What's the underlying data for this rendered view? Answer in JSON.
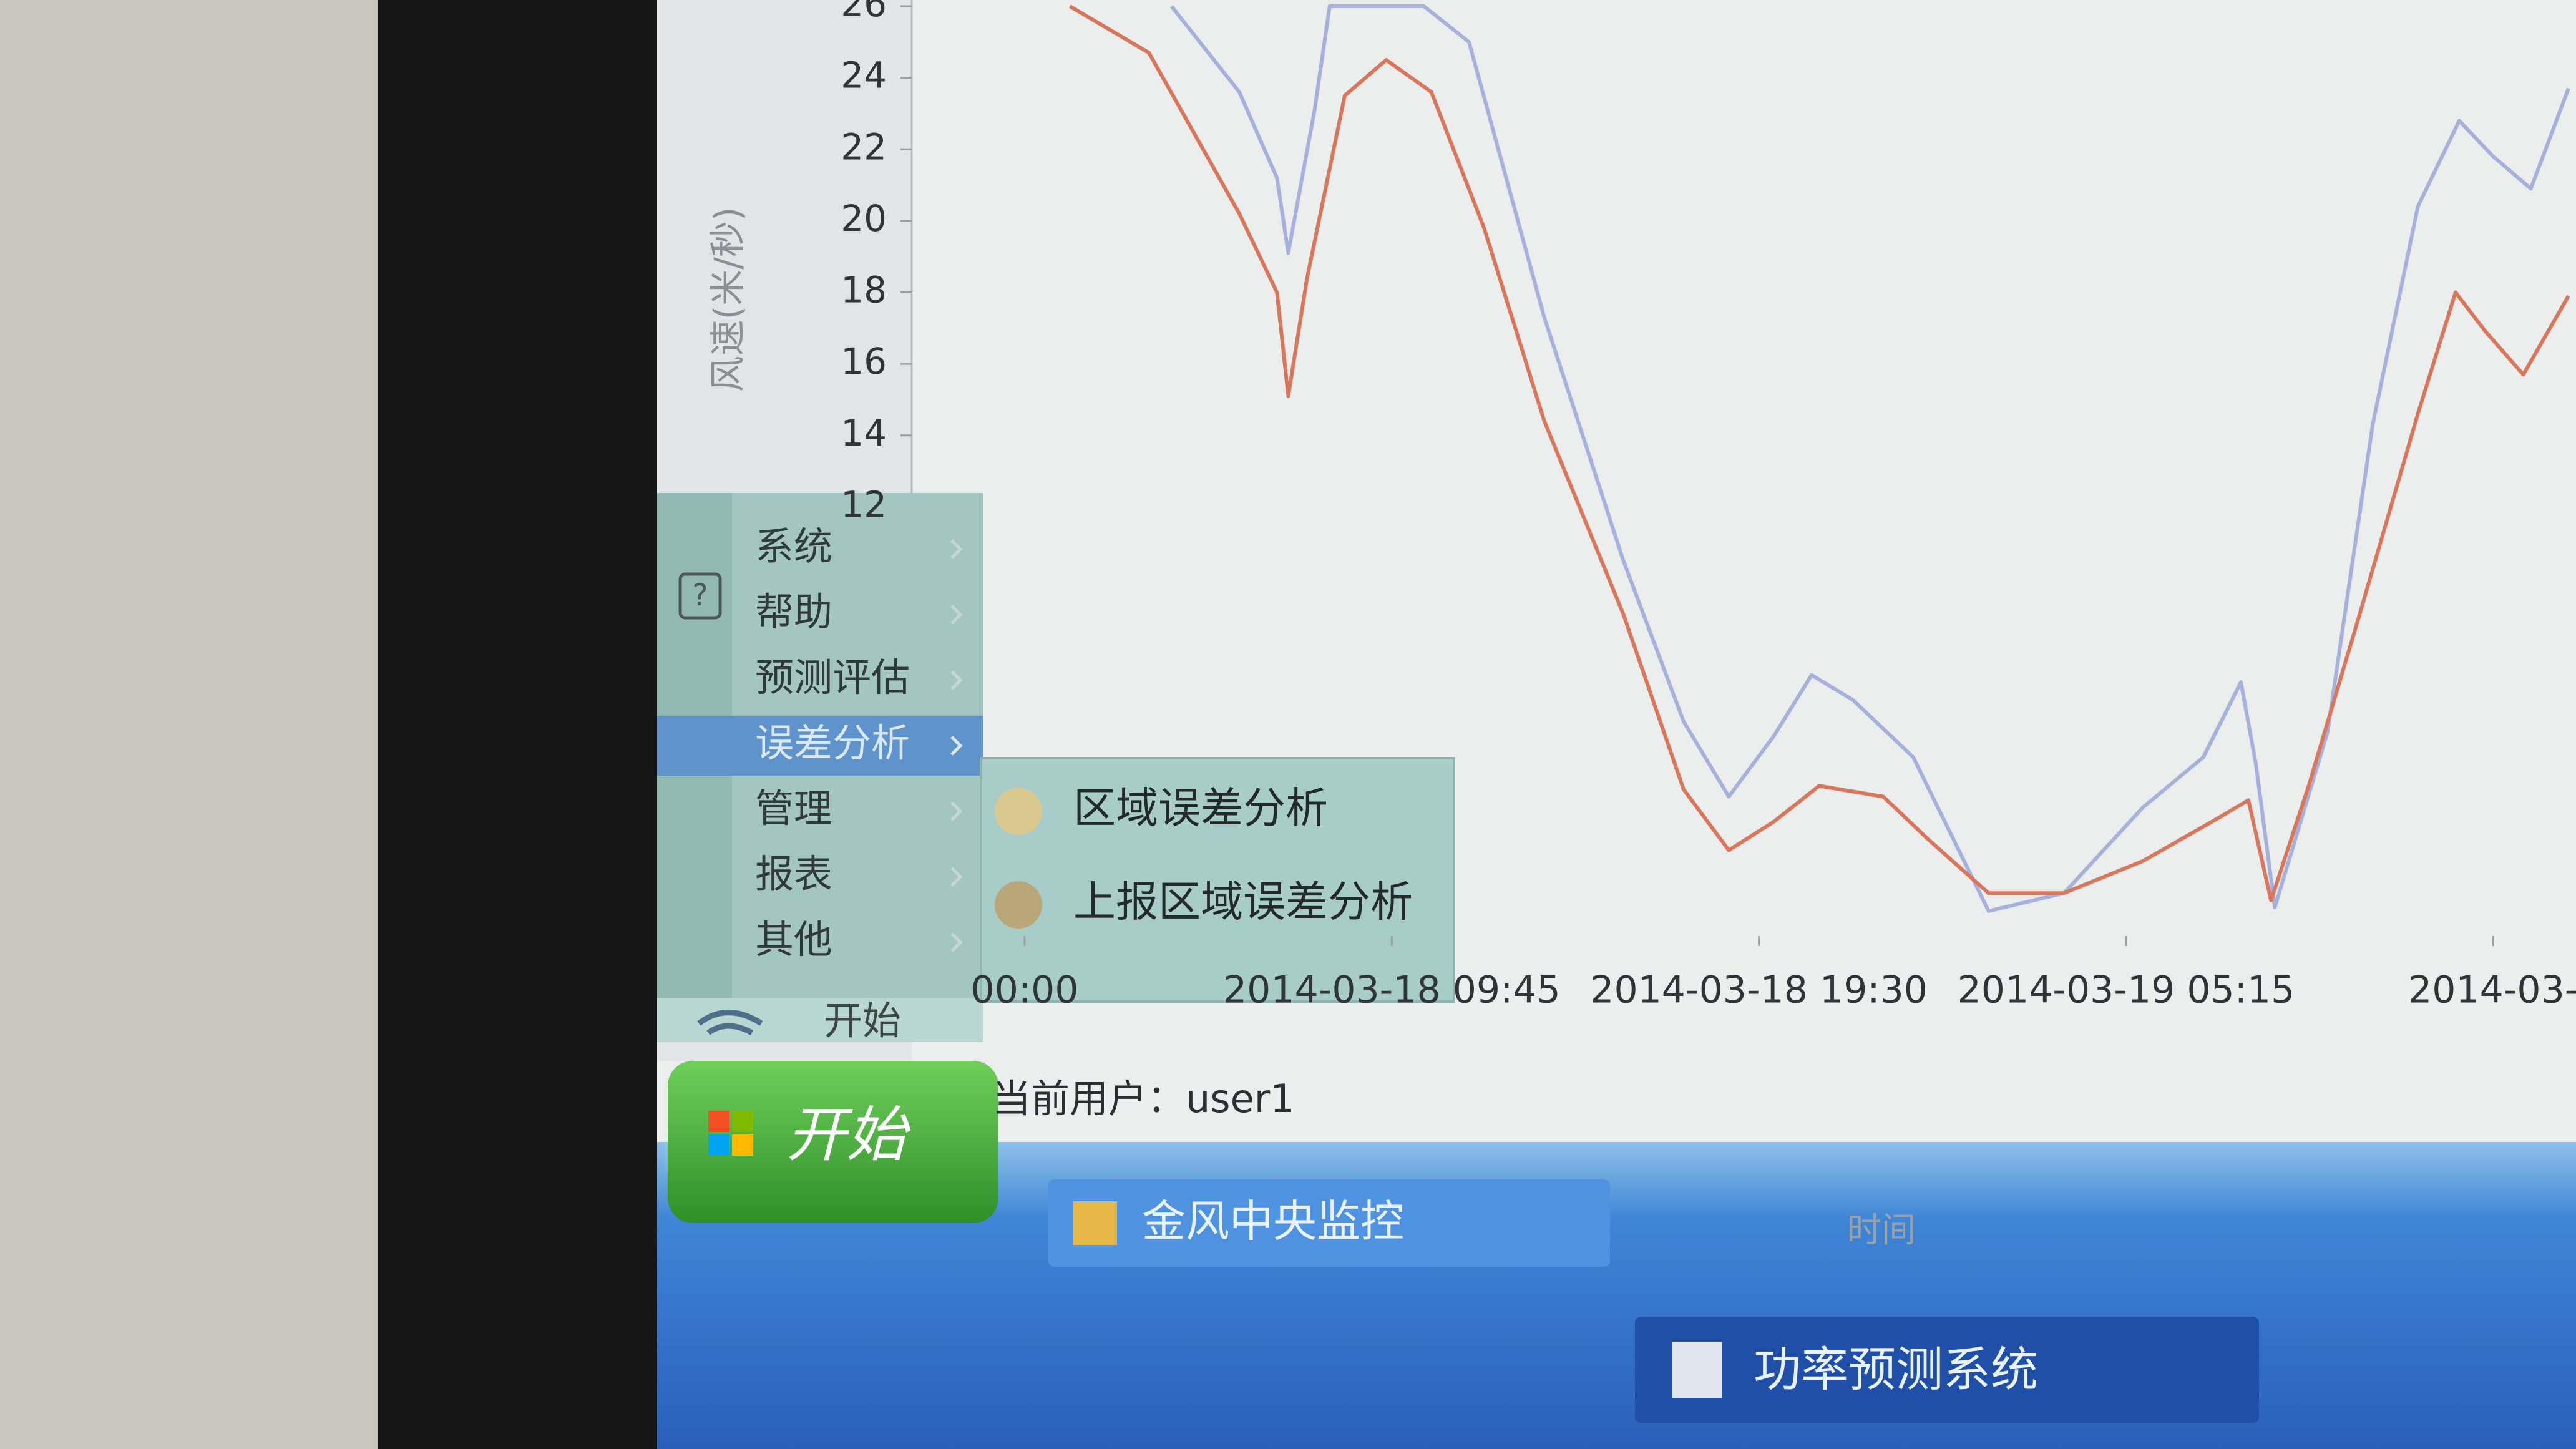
{
  "chart_data": {
    "type": "line",
    "ylabel": "风速(米/秒)",
    "xlabel": "时间",
    "xlim": [
      -3,
      41.2
    ],
    "xticks": [
      {
        "value": 0,
        "label": "00:00"
      },
      {
        "value": 9.75,
        "label": "2014-03-18 09:45"
      },
      {
        "value": 19.5,
        "label": "2014-03-18 19:30"
      },
      {
        "value": 29.25,
        "label": "2014-03-19 05:15"
      },
      {
        "value": 39,
        "label": "2014-03-"
      }
    ],
    "ylim": [
      0,
      26
    ],
    "yticks": [
      12,
      14,
      16,
      18,
      20,
      22,
      24,
      26
    ],
    "series": [
      {
        "color": "#a6b2dc",
        "x": [
          3.9,
          5.7,
          6.7,
          7.0,
          7.7,
          8.1,
          10.6,
          11.8,
          13.8,
          15.9,
          17.5,
          18.7,
          19.9,
          20.9,
          22.0,
          23.6,
          25.6,
          27.6,
          29.7,
          31.3,
          32.3,
          32.7,
          33.2,
          34.6,
          35.8,
          37.0,
          38.1,
          39.0,
          40.0,
          41.0
        ],
        "values": [
          26,
          23.6,
          21.2,
          19.1,
          23.1,
          26,
          26,
          25,
          17.3,
          10.5,
          6.0,
          3.9,
          5.6,
          7.3,
          6.6,
          5.0,
          0.7,
          1.2,
          3.6,
          5.0,
          7.1,
          4.8,
          0.8,
          5.7,
          14.3,
          20.4,
          22.8,
          21.8,
          20.9,
          23.7
        ]
      },
      {
        "color": "#d9775c",
        "x": [
          1.2,
          3.3,
          5.7,
          6.7,
          7.0,
          7.5,
          8.5,
          9.6,
          10.8,
          12.2,
          13.8,
          15.9,
          17.5,
          18.7,
          19.9,
          21.1,
          22.8,
          24.0,
          25.6,
          27.6,
          29.7,
          31.7,
          32.5,
          33.1,
          34.1,
          35.4,
          37.0,
          38.0,
          38.8,
          39.8,
          41.0
        ],
        "values": [
          26,
          24.7,
          20.2,
          18.0,
          15.1,
          18.4,
          23.5,
          24.5,
          23.6,
          19.8,
          14.4,
          9.0,
          4.1,
          2.4,
          3.2,
          4.2,
          3.9,
          2.7,
          1.2,
          1.2,
          2.1,
          3.3,
          3.8,
          1.0,
          4.2,
          8.8,
          14.6,
          18.0,
          16.9,
          15.7,
          17.9
        ]
      }
    ]
  },
  "menu": {
    "items": [
      "系统",
      "帮助",
      "预测评估",
      "误差分析",
      "管理",
      "报表",
      "其他"
    ],
    "highlighted": 3,
    "start_label": "开始"
  },
  "submenu": {
    "items": [
      "区域误差分析",
      "上报区域误差分析"
    ]
  },
  "status": {
    "text": "当前用户：user1"
  },
  "taskbar": {
    "start": "开始",
    "items": [
      "金风中央监控",
      "功率预测系统"
    ]
  }
}
